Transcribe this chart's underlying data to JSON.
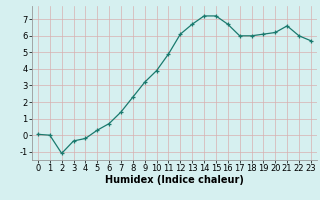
{
  "x": [
    0,
    1,
    2,
    3,
    4,
    5,
    6,
    7,
    8,
    9,
    10,
    11,
    12,
    13,
    14,
    15,
    16,
    17,
    18,
    19,
    20,
    21,
    22,
    23
  ],
  "y": [
    0.05,
    0.0,
    -1.1,
    -0.35,
    -0.2,
    0.3,
    0.7,
    1.4,
    2.3,
    3.2,
    3.9,
    4.9,
    6.1,
    6.7,
    7.2,
    7.2,
    6.7,
    6.0,
    6.0,
    6.1,
    6.2,
    6.6,
    6.0,
    5.7
  ],
  "line_color": "#1a7a6e",
  "marker": "+",
  "bg_color": "#d6f0f0",
  "grid_color": "#c0e0e0",
  "xlabel": "Humidex (Indice chaleur)",
  "xlim": [
    -0.5,
    23.5
  ],
  "ylim": [
    -1.5,
    7.8
  ],
  "yticks": [
    -1,
    0,
    1,
    2,
    3,
    4,
    5,
    6,
    7
  ],
  "xticks": [
    0,
    1,
    2,
    3,
    4,
    5,
    6,
    7,
    8,
    9,
    10,
    11,
    12,
    13,
    14,
    15,
    16,
    17,
    18,
    19,
    20,
    21,
    22,
    23
  ],
  "tick_font_size": 6,
  "label_font_size": 7
}
